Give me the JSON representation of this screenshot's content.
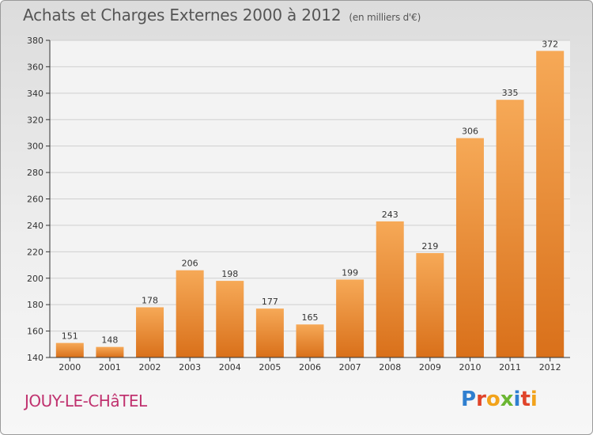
{
  "header": {
    "title": "Achats et Charges Externes 2000 à 2012",
    "unit": "(en milliers d'€)"
  },
  "footer": {
    "place": "JOUY-LE-CHâTEL",
    "logo_letters": [
      "P",
      "r",
      "o",
      "x",
      "i",
      "t",
      "i"
    ],
    "logo_colors": [
      "#2f7fd0",
      "#e0442a",
      "#f2a31b",
      "#6bb632",
      "#2f7fd0",
      "#e0442a",
      "#f2a31b"
    ]
  },
  "colors": {
    "bar_light": "#f6a957",
    "bar_dark": "#d9701a",
    "grid": "#cfcfcf",
    "axis": "#333333"
  },
  "chart_data": {
    "type": "bar",
    "categories": [
      "2000",
      "2001",
      "2002",
      "2003",
      "2004",
      "2005",
      "2006",
      "2007",
      "2008",
      "2009",
      "2010",
      "2011",
      "2012"
    ],
    "values": [
      151,
      148,
      178,
      206,
      198,
      177,
      165,
      199,
      243,
      219,
      306,
      335,
      372
    ],
    "yticks": [
      140,
      160,
      180,
      200,
      220,
      240,
      260,
      280,
      300,
      320,
      340,
      360,
      380
    ],
    "ylim": [
      140,
      380
    ],
    "grid": true,
    "title": "Achats et Charges Externes 2000 à 2012",
    "xlabel": "",
    "ylabel": ""
  }
}
